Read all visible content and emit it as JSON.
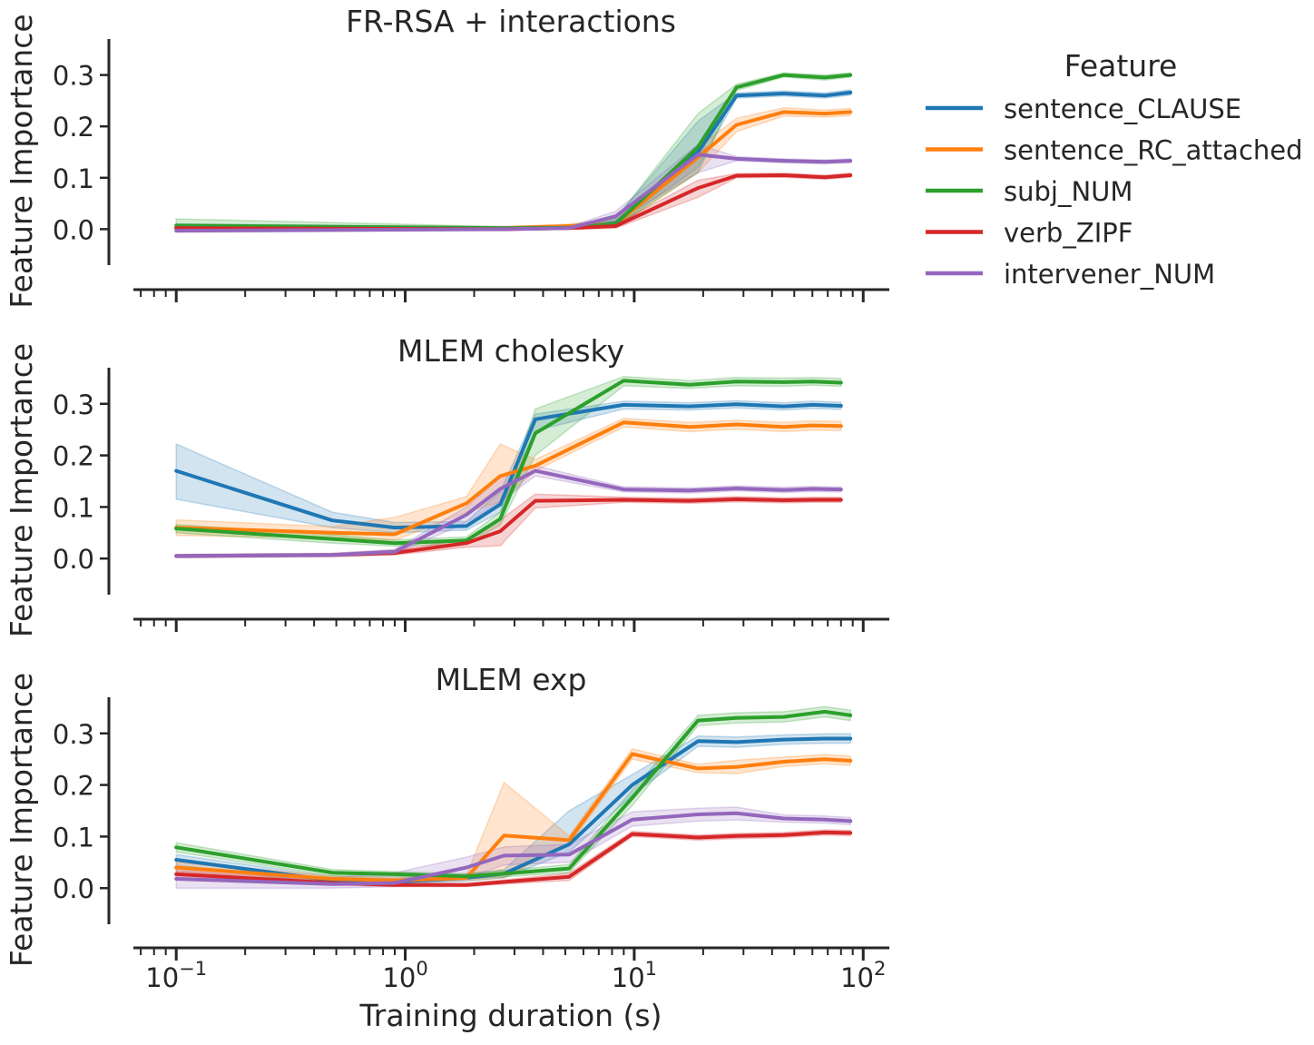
{
  "figure": {
    "shared_xlabel": "Training duration (s)",
    "legend_title": "Feature"
  },
  "colors": {
    "sentence_CLAUSE": "#1f77b4",
    "sentence_RC_attached": "#ff7f0e",
    "subj_NUM": "#2ca02c",
    "verb_ZIPF": "#d62728",
    "intervener_NUM": "#9467bd",
    "axis": "#262626"
  },
  "legend": {
    "entries": [
      "sentence_CLAUSE",
      "sentence_RC_attached",
      "subj_NUM",
      "verb_ZIPF",
      "intervener_NUM"
    ]
  },
  "chart_data": [
    {
      "type": "line",
      "title": "FR-RSA + interactions",
      "xlabel": "",
      "ylabel": "Feature Importance",
      "xscale": "log",
      "xlim": [
        0.065,
        130
      ],
      "ylim": [
        -0.07,
        0.37
      ],
      "yticks": [
        "0.0",
        "0.1",
        "0.2",
        "0.3"
      ],
      "ytick_values": [
        0,
        0.1,
        0.2,
        0.3
      ],
      "legend_placement": "outside right",
      "series": [
        {
          "name": "sentence_CLAUSE",
          "x": [
            0.1,
            2.7,
            5.2,
            8.3,
            19,
            28,
            45,
            68,
            88
          ],
          "y": [
            0.003,
            0.002,
            0.004,
            0.012,
            0.15,
            0.26,
            0.264,
            0.26,
            0.266
          ],
          "lo": [
            0.0,
            0.0,
            0.001,
            0.005,
            0.12,
            0.255,
            0.259,
            0.255,
            0.261
          ],
          "hi": [
            0.01,
            0.005,
            0.008,
            0.022,
            0.21,
            0.265,
            0.269,
            0.265,
            0.271
          ]
        },
        {
          "name": "sentence_RC_attached",
          "x": [
            0.1,
            2.7,
            5.2,
            8.3,
            19,
            28,
            45,
            68,
            88
          ],
          "y": [
            0.003,
            0.002,
            0.006,
            0.01,
            0.14,
            0.203,
            0.228,
            0.225,
            0.228
          ],
          "lo": [
            0.0,
            0.0,
            0.002,
            0.004,
            0.11,
            0.19,
            0.22,
            0.218,
            0.221
          ],
          "hi": [
            0.008,
            0.005,
            0.01,
            0.018,
            0.16,
            0.216,
            0.236,
            0.232,
            0.235
          ]
        },
        {
          "name": "subj_NUM",
          "x": [
            0.1,
            2.7,
            5.2,
            8.3,
            19,
            28,
            45,
            68,
            88
          ],
          "y": [
            0.007,
            0.002,
            0.003,
            0.01,
            0.16,
            0.276,
            0.3,
            0.295,
            0.3
          ],
          "lo": [
            0.0,
            0.0,
            0.0,
            0.004,
            0.11,
            0.27,
            0.296,
            0.29,
            0.296
          ],
          "hi": [
            0.02,
            0.005,
            0.007,
            0.02,
            0.225,
            0.282,
            0.304,
            0.3,
            0.304
          ]
        },
        {
          "name": "verb_ZIPF",
          "x": [
            0.1,
            2.7,
            5.2,
            8.3,
            19,
            28,
            45,
            68,
            88
          ],
          "y": [
            0.002,
            0.0,
            0.002,
            0.006,
            0.08,
            0.104,
            0.105,
            0.101,
            0.105
          ],
          "lo": [
            0.0,
            -0.002,
            0.0,
            0.002,
            0.062,
            0.1,
            0.101,
            0.097,
            0.101
          ],
          "hi": [
            0.006,
            0.003,
            0.005,
            0.01,
            0.095,
            0.108,
            0.109,
            0.105,
            0.109
          ]
        },
        {
          "name": "intervener_NUM",
          "x": [
            0.1,
            2.7,
            5.2,
            8.3,
            19,
            28,
            45,
            68,
            88
          ],
          "y": [
            -0.003,
            0.0,
            0.002,
            0.025,
            0.145,
            0.137,
            0.133,
            0.131,
            0.133
          ],
          "lo": [
            -0.006,
            -0.003,
            0.0,
            0.015,
            0.11,
            0.133,
            0.129,
            0.127,
            0.129
          ],
          "hi": [
            0.002,
            0.003,
            0.005,
            0.035,
            0.165,
            0.141,
            0.137,
            0.135,
            0.137
          ]
        }
      ]
    },
    {
      "type": "line",
      "title": "MLEM cholesky",
      "xlabel": "",
      "ylabel": "Feature Importance",
      "xscale": "log",
      "xlim": [
        0.065,
        130
      ],
      "ylim": [
        -0.07,
        0.37
      ],
      "yticks": [
        "0.0",
        "0.1",
        "0.2",
        "0.3"
      ],
      "ytick_values": [
        0,
        0.1,
        0.2,
        0.3
      ],
      "series": [
        {
          "name": "sentence_CLAUSE",
          "x": [
            0.1,
            0.48,
            0.9,
            1.85,
            2.6,
            3.7,
            9,
            17.5,
            28,
            45,
            60,
            80
          ],
          "y": [
            0.17,
            0.074,
            0.06,
            0.063,
            0.105,
            0.27,
            0.298,
            0.295,
            0.299,
            0.295,
            0.298,
            0.296
          ],
          "lo": [
            0.115,
            0.06,
            0.05,
            0.055,
            0.09,
            0.248,
            0.29,
            0.288,
            0.292,
            0.288,
            0.291,
            0.289
          ],
          "hi": [
            0.222,
            0.09,
            0.07,
            0.072,
            0.13,
            0.28,
            0.305,
            0.302,
            0.306,
            0.302,
            0.305,
            0.303
          ]
        },
        {
          "name": "sentence_RC_attached",
          "x": [
            0.1,
            0.48,
            0.9,
            1.85,
            2.6,
            3.7,
            9,
            17.5,
            28,
            45,
            60,
            80
          ],
          "y": [
            0.06,
            0.05,
            0.047,
            0.107,
            0.16,
            0.18,
            0.264,
            0.255,
            0.26,
            0.255,
            0.258,
            0.257
          ],
          "lo": [
            0.045,
            0.04,
            0.035,
            0.09,
            0.11,
            0.17,
            0.255,
            0.246,
            0.251,
            0.246,
            0.249,
            0.248
          ],
          "hi": [
            0.075,
            0.062,
            0.08,
            0.12,
            0.222,
            0.192,
            0.272,
            0.264,
            0.268,
            0.264,
            0.267,
            0.266
          ]
        },
        {
          "name": "subj_NUM",
          "x": [
            0.1,
            0.48,
            0.9,
            1.85,
            2.6,
            3.7,
            9,
            17.5,
            28,
            45,
            60,
            80
          ],
          "y": [
            0.058,
            0.038,
            0.03,
            0.035,
            0.077,
            0.243,
            0.345,
            0.337,
            0.343,
            0.342,
            0.343,
            0.341
          ],
          "lo": [
            0.05,
            0.03,
            0.024,
            0.028,
            0.065,
            0.2,
            0.335,
            0.33,
            0.335,
            0.334,
            0.336,
            0.334
          ],
          "hi": [
            0.066,
            0.046,
            0.036,
            0.042,
            0.09,
            0.29,
            0.353,
            0.345,
            0.351,
            0.35,
            0.351,
            0.349
          ]
        },
        {
          "name": "verb_ZIPF",
          "x": [
            0.1,
            0.48,
            0.9,
            1.85,
            2.6,
            3.7,
            9,
            17.5,
            28,
            45,
            60,
            80
          ],
          "y": [
            0.005,
            0.007,
            0.011,
            0.03,
            0.053,
            0.112,
            0.114,
            0.112,
            0.115,
            0.113,
            0.114,
            0.114
          ],
          "lo": [
            0.002,
            0.004,
            0.007,
            0.022,
            0.025,
            0.098,
            0.109,
            0.107,
            0.11,
            0.108,
            0.109,
            0.109
          ],
          "hi": [
            0.008,
            0.01,
            0.016,
            0.038,
            0.075,
            0.125,
            0.119,
            0.117,
            0.12,
            0.118,
            0.119,
            0.119
          ]
        },
        {
          "name": "intervener_NUM",
          "x": [
            0.1,
            0.48,
            0.9,
            1.85,
            2.6,
            3.7,
            9,
            17.5,
            28,
            45,
            60,
            80
          ],
          "y": [
            0.005,
            0.007,
            0.013,
            0.085,
            0.135,
            0.17,
            0.134,
            0.132,
            0.136,
            0.133,
            0.135,
            0.134
          ],
          "lo": [
            0.002,
            0.004,
            0.008,
            0.07,
            0.11,
            0.16,
            0.129,
            0.127,
            0.131,
            0.128,
            0.13,
            0.129
          ],
          "hi": [
            0.008,
            0.01,
            0.018,
            0.1,
            0.158,
            0.18,
            0.139,
            0.137,
            0.141,
            0.138,
            0.14,
            0.139
          ]
        }
      ]
    },
    {
      "type": "line",
      "title": "MLEM exp",
      "xlabel": "Training duration (s)",
      "ylabel": "Feature Importance",
      "xscale": "log",
      "xlim": [
        0.065,
        130
      ],
      "ylim": [
        -0.07,
        0.37
      ],
      "yticks": [
        "0.0",
        "0.1",
        "0.2",
        "0.3"
      ],
      "ytick_values": [
        0,
        0.1,
        0.2,
        0.3
      ],
      "xticks": [
        "10",
        "10",
        "10",
        "10"
      ],
      "xtick_exponents": [
        "−1",
        "0",
        "1",
        "2"
      ],
      "xtick_values": [
        0.1,
        1,
        10,
        100
      ],
      "series": [
        {
          "name": "sentence_CLAUSE",
          "x": [
            0.1,
            0.48,
            0.9,
            1.85,
            2.7,
            5.2,
            9.8,
            19,
            28,
            45,
            68,
            88
          ],
          "y": [
            0.055,
            0.015,
            0.012,
            0.02,
            0.028,
            0.085,
            0.2,
            0.285,
            0.283,
            0.288,
            0.29,
            0.29
          ],
          "lo": [
            0.045,
            0.008,
            0.006,
            0.013,
            0.02,
            0.07,
            0.18,
            0.275,
            0.273,
            0.279,
            0.281,
            0.281
          ],
          "hi": [
            0.065,
            0.022,
            0.018,
            0.027,
            0.036,
            0.15,
            0.22,
            0.295,
            0.293,
            0.297,
            0.299,
            0.299
          ]
        },
        {
          "name": "sentence_RC_attached",
          "x": [
            0.1,
            0.48,
            0.9,
            1.85,
            2.7,
            5.2,
            9.8,
            19,
            28,
            45,
            68,
            88
          ],
          "y": [
            0.04,
            0.018,
            0.015,
            0.02,
            0.102,
            0.093,
            0.26,
            0.232,
            0.235,
            0.245,
            0.25,
            0.247
          ],
          "lo": [
            0.03,
            0.012,
            0.01,
            0.015,
            0.02,
            0.085,
            0.25,
            0.224,
            0.222,
            0.236,
            0.241,
            0.238
          ],
          "hi": [
            0.05,
            0.024,
            0.02,
            0.025,
            0.205,
            0.101,
            0.27,
            0.24,
            0.248,
            0.254,
            0.259,
            0.256
          ]
        },
        {
          "name": "subj_NUM",
          "x": [
            0.1,
            0.48,
            0.9,
            1.85,
            2.7,
            5.2,
            9.8,
            19,
            28,
            45,
            68,
            88
          ],
          "y": [
            0.079,
            0.03,
            0.027,
            0.023,
            0.028,
            0.038,
            0.175,
            0.325,
            0.33,
            0.332,
            0.342,
            0.335
          ],
          "lo": [
            0.07,
            0.024,
            0.022,
            0.018,
            0.022,
            0.03,
            0.16,
            0.315,
            0.32,
            0.322,
            0.332,
            0.325
          ],
          "hi": [
            0.088,
            0.036,
            0.032,
            0.028,
            0.034,
            0.046,
            0.19,
            0.335,
            0.34,
            0.342,
            0.352,
            0.345
          ]
        },
        {
          "name": "verb_ZIPF",
          "x": [
            0.1,
            0.48,
            0.9,
            1.85,
            2.7,
            5.2,
            9.8,
            19,
            28,
            45,
            68,
            88
          ],
          "y": [
            0.027,
            0.01,
            0.006,
            0.006,
            0.012,
            0.022,
            0.105,
            0.098,
            0.101,
            0.103,
            0.108,
            0.107
          ],
          "lo": [
            0.02,
            0.006,
            0.003,
            0.003,
            0.008,
            0.015,
            0.1,
            0.093,
            0.096,
            0.098,
            0.103,
            0.102
          ],
          "hi": [
            0.034,
            0.014,
            0.009,
            0.009,
            0.016,
            0.029,
            0.11,
            0.103,
            0.106,
            0.108,
            0.113,
            0.112
          ]
        },
        {
          "name": "intervener_NUM",
          "x": [
            0.1,
            0.48,
            0.9,
            1.85,
            2.7,
            5.2,
            9.8,
            19,
            28,
            45,
            68,
            88
          ],
          "y": [
            0.018,
            0.008,
            0.01,
            0.04,
            0.063,
            0.065,
            0.133,
            0.143,
            0.145,
            0.135,
            0.133,
            0.13
          ],
          "lo": [
            0.0,
            0.0,
            0.003,
            0.02,
            0.045,
            0.05,
            0.12,
            0.13,
            0.132,
            0.128,
            0.126,
            0.123
          ],
          "hi": [
            0.04,
            0.02,
            0.03,
            0.06,
            0.08,
            0.085,
            0.148,
            0.155,
            0.157,
            0.142,
            0.14,
            0.137
          ]
        }
      ]
    }
  ]
}
